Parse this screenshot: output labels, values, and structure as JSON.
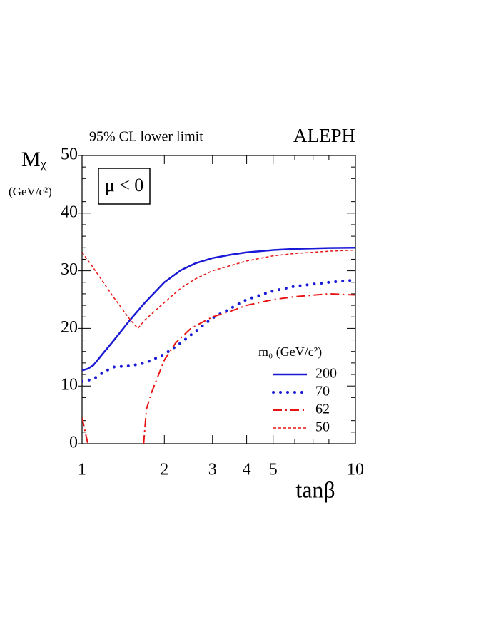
{
  "chart_data": {
    "type": "line",
    "title": "95% CL lower limit",
    "experiment": "ALEPH",
    "ylabel": "Mᵪ",
    "yunit": "(GeV/c²)",
    "xlabel": "tanβ",
    "annotation": "μ < 0",
    "legend_title": "m₀  (GeV/c²)",
    "xscale": "log",
    "xlim": [
      1,
      10
    ],
    "ylim": [
      0,
      50
    ],
    "xticks": [
      1,
      2,
      3,
      4,
      5,
      10
    ],
    "xminorticks": [
      6,
      7,
      8,
      9
    ],
    "yticks": [
      0,
      10,
      20,
      30,
      40,
      50
    ],
    "yminorticks": [
      2,
      4,
      6,
      8,
      12,
      14,
      16,
      18,
      22,
      24,
      26,
      28,
      32,
      34,
      36,
      38,
      42,
      44,
      46,
      48
    ],
    "series": [
      {
        "name": "200",
        "color": "#1a1ad6",
        "style": "solid",
        "x": [
          1,
          1.05,
          1.1,
          1.2,
          1.3,
          1.5,
          1.7,
          2,
          2.3,
          2.6,
          3,
          3.5,
          4,
          5,
          6,
          8,
          10
        ],
        "values": [
          12.7,
          13.0,
          13.6,
          15.8,
          17.8,
          21.5,
          24.5,
          28.0,
          30.1,
          31.3,
          32.2,
          32.8,
          33.2,
          33.6,
          33.8,
          33.95,
          34.0
        ]
      },
      {
        "name": "70",
        "color": "#1a1ad6",
        "style": "dotted",
        "x": [
          1,
          1.1,
          1.2,
          1.3,
          1.5,
          1.7,
          2,
          2.3,
          2.6,
          3,
          3.5,
          4,
          5,
          6,
          8,
          10
        ],
        "values": [
          10.8,
          11.2,
          12.4,
          13.3,
          13.5,
          14.0,
          15.5,
          17.5,
          19.5,
          21.8,
          23.5,
          25.0,
          26.5,
          27.3,
          28.0,
          28.4
        ]
      },
      {
        "name": "62",
        "color": "#e81414",
        "style": "dashdot",
        "x": [
          1,
          1.05,
          1.3,
          1.68,
          1.72,
          1.8,
          2,
          2.2,
          2.5,
          3,
          3.5,
          4,
          5,
          6,
          8,
          10
        ],
        "values": [
          4.5,
          0,
          null,
          0,
          6,
          9,
          14.5,
          17.5,
          20.0,
          22.0,
          23.0,
          24.0,
          25.0,
          25.5,
          26.0,
          25.8
        ]
      },
      {
        "name": "50",
        "color": "#e81414",
        "style": "dashed",
        "x": [
          1,
          1.1,
          1.3,
          1.5,
          1.6,
          1.7,
          2,
          2.3,
          2.6,
          3,
          4,
          5,
          6,
          8,
          10
        ],
        "values": [
          33.2,
          30.5,
          25.5,
          21.5,
          20.0,
          21.5,
          24.5,
          27.0,
          28.6,
          30.0,
          31.7,
          32.6,
          33.0,
          33.4,
          33.6
        ]
      }
    ]
  }
}
